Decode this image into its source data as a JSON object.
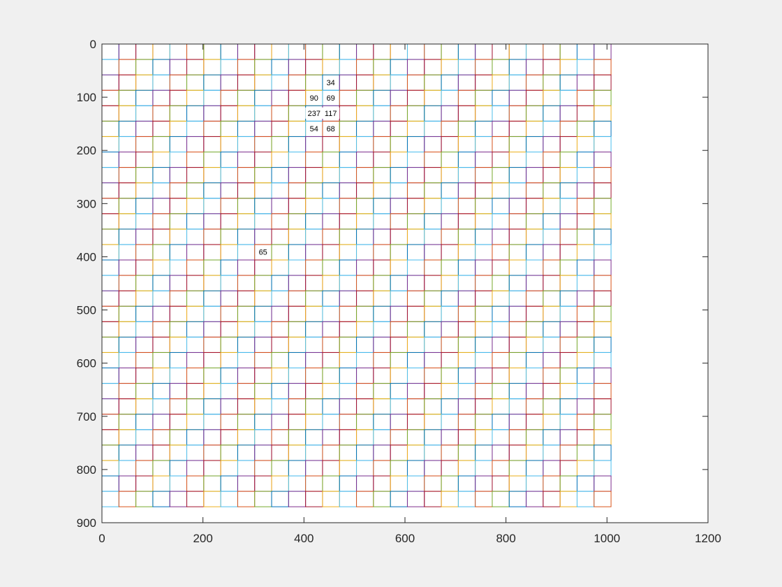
{
  "chart_data": {
    "type": "grid",
    "title": "",
    "xlabel": "",
    "ylabel": "",
    "xlim": [
      0,
      1200
    ],
    "ylim": [
      0,
      900
    ],
    "y_direction": "reverse",
    "grid": false,
    "legend": "none",
    "x_ticks": [
      0,
      200,
      400,
      600,
      800,
      1000,
      1200
    ],
    "y_ticks": [
      0,
      100,
      200,
      300,
      400,
      500,
      600,
      700,
      800,
      900
    ],
    "x_tick_labels": [
      "0",
      "200",
      "400",
      "600",
      "800",
      "1000",
      "1200"
    ],
    "y_tick_labels": [
      "0",
      "100",
      "200",
      "300",
      "400",
      "500",
      "600",
      "700",
      "800",
      "900"
    ],
    "grid_cells": {
      "x_start": 0,
      "x_end": 1008,
      "y_start": 0,
      "y_end": 870,
      "columns": 30,
      "rows": 30,
      "cell_width": 33.6,
      "cell_height": 29
    },
    "edge_colors": [
      "#0072bd",
      "#d95319",
      "#edb120",
      "#7e2f8e",
      "#77ac30",
      "#4dbeee",
      "#a2142f"
    ],
    "cell_labels": [
      {
        "text": "34",
        "x": 453,
        "y": 72
      },
      {
        "text": "90",
        "x": 420,
        "y": 101
      },
      {
        "text": "69",
        "x": 453,
        "y": 101
      },
      {
        "text": "237",
        "x": 420,
        "y": 130
      },
      {
        "text": "117",
        "x": 453,
        "y": 130
      },
      {
        "text": "54",
        "x": 420,
        "y": 159
      },
      {
        "text": "68",
        "x": 453,
        "y": 159
      },
      {
        "text": "65",
        "x": 319,
        "y": 391
      }
    ]
  },
  "colors": {
    "figure_background": "#f0f0f0",
    "axes_background": "#ffffff",
    "axis_color": "#262626"
  }
}
